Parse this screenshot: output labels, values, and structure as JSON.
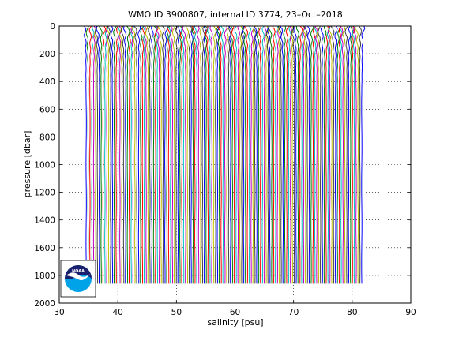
{
  "chart_data": {
    "type": "line",
    "title": "WMO ID 3900807, internal ID 3774, 23–Oct–2018",
    "xlabel": "salinity [psu]",
    "ylabel": "pressure [dbar]",
    "xlim": [
      30,
      90
    ],
    "ylim": [
      0,
      2000
    ],
    "y_reversed": true,
    "grid": "dotted",
    "x_ticks": [
      "30",
      "40",
      "50",
      "60",
      "70",
      "80",
      "90"
    ],
    "y_ticks": [
      "0",
      "200",
      "400",
      "600",
      "800",
      "1000",
      "1200",
      "1400",
      "1600",
      "1800",
      "2000"
    ],
    "profile_count": 148,
    "profile_spacing_psu": 0.32,
    "first_profile_deep_salinity": 34.6,
    "deep_pressure_limit": 1860,
    "surface_salinity_offset": 0.3,
    "colors": [
      "#0000ff",
      "#008000",
      "#ff0000",
      "#00bfbf",
      "#bf00bf",
      "#bfbf00",
      "#404040"
    ],
    "logo": {
      "name": "noaa-logo",
      "text": "NOAA",
      "colors": {
        "top": "#1a1f6e",
        "bottom": "#00a2e8",
        "bird": "#ffffff"
      }
    }
  }
}
